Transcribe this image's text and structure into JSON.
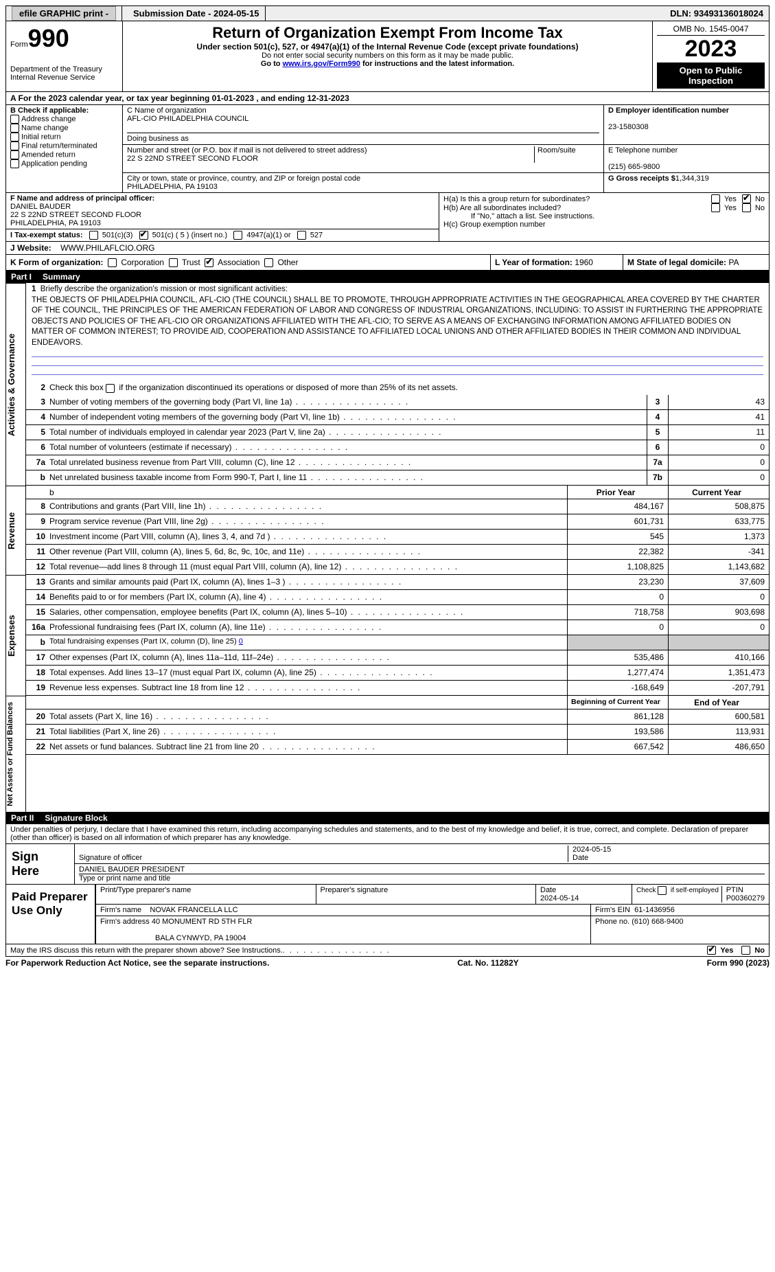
{
  "topbar": {
    "efile": "efile GRAPHIC print -",
    "submission": "Submission Date - 2024-05-15",
    "dln_label": "DLN:",
    "dln": "93493136018024"
  },
  "header": {
    "form": "Form",
    "form_num": "990",
    "title": "Return of Organization Exempt From Income Tax",
    "subtitle": "Under section 501(c), 527, or 4947(a)(1) of the Internal Revenue Code (except private foundations)",
    "note1": "Do not enter social security numbers on this form as it may be made public.",
    "note2_pre": "Go to ",
    "note2_link": "www.irs.gov/Form990",
    "note2_post": " for instructions and the latest information.",
    "dept": "Department of the Treasury\nInternal Revenue Service",
    "omb": "OMB No. 1545-0047",
    "year": "2023",
    "inspect": "Open to Public Inspection"
  },
  "row_a": "A  For the 2023 calendar year, or tax year beginning 01-01-2023     , and ending 12-31-2023",
  "box_b": {
    "label": "B Check if applicable:",
    "opts": [
      "Address change",
      "Name change",
      "Initial return",
      "Final return/terminated",
      "Amended return",
      "Application pending"
    ]
  },
  "box_c": {
    "name_lbl": "C Name of organization",
    "name": "AFL-CIO PHILADELPHIA COUNCIL",
    "dba_lbl": "Doing business as",
    "dba": "",
    "addr_lbl": "Number and street (or P.O. box if mail is not delivered to street address)",
    "room_lbl": "Room/suite",
    "addr": "22 S 22ND STREET SECOND FLOOR",
    "city_lbl": "City or town, state or province, country, and ZIP or foreign postal code",
    "city": "PHILADELPHIA, PA  19103"
  },
  "box_d": {
    "lbl": "D Employer identification number",
    "val": "23-1580308"
  },
  "box_e": {
    "lbl": "E Telephone number",
    "val": "(215) 665-9800"
  },
  "box_g": {
    "lbl": "G Gross receipts $",
    "val": "1,344,319"
  },
  "box_f": {
    "lbl": "F Name and address of principal officer:",
    "name": "DANIEL BAUDER",
    "addr1": "22 S 22ND STREET SECOND FLOOR",
    "addr2": "PHILADELPHIA, PA  19103"
  },
  "box_h": {
    "ha": "H(a)  Is this a group return for subordinates?",
    "hb": "H(b)  Are all subordinates included?",
    "hb_note": "If \"No,\" attach a list. See instructions.",
    "hc": "H(c)  Group exemption number",
    "yes": "Yes",
    "no": "No"
  },
  "box_i": {
    "lbl": "I    Tax-exempt status:",
    "c3": "501(c)(3)",
    "c": "501(c) ( 5 ) (insert no.)",
    "a1": "4947(a)(1) or",
    "five27": "527"
  },
  "box_j": {
    "lbl": "J    Website:",
    "val": "WWW.PHILAFLCIO.ORG"
  },
  "box_k": {
    "lbl": "K Form of organization:",
    "corp": "Corporation",
    "trust": "Trust",
    "assoc": "Association",
    "other": "Other"
  },
  "box_l": {
    "lbl": "L Year of formation:",
    "val": "1960"
  },
  "box_m": {
    "lbl": "M State of legal domicile:",
    "val": "PA"
  },
  "part1": {
    "num": "Part I",
    "title": "Summary"
  },
  "gov": {
    "label": "Activities & Governance",
    "l1": "Briefly describe the organization's mission or most significant activities:",
    "mission": "THE OBJECTS OF PHILADELPHIA COUNCIL, AFL-CIO (THE COUNCIL) SHALL BE TO PROMOTE, THROUGH APPROPRIATE ACTIVITIES IN THE GEOGRAPHICAL AREA COVERED BY THE CHARTER OF THE COUNCIL, THE PRINCIPLES OF THE AMERICAN FEDERATION OF LABOR AND CONGRESS OF INDUSTRIAL ORGANIZATIONS, INCLUDING: TO ASSIST IN FURTHERING THE APPROPRIATE OBJECTS AND POLICIES OF THE AFL-CIO OR ORGANIZATIONS AFFILIATED WITH THE AFL-CIO; TO SERVE AS A MEANS OF EXCHANGING INFORMATION AMONG AFFILIATED BODIES ON MATTER OF COMMON INTEREST; TO PROVIDE AID, COOPERATION AND ASSISTANCE TO AFFILIATED LOCAL UNIONS AND OTHER AFFILIATED BODIES IN THEIR COMMON AND INDIVIDUAL ENDEAVORS.",
    "l2": "Check this box      if the organization discontinued its operations or disposed of more than 25% of its net assets.",
    "lines": [
      {
        "n": "3",
        "d": "Number of voting members of the governing body (Part VI, line 1a)",
        "b": "3",
        "v": "43"
      },
      {
        "n": "4",
        "d": "Number of independent voting members of the governing body (Part VI, line 1b)",
        "b": "4",
        "v": "41"
      },
      {
        "n": "5",
        "d": "Total number of individuals employed in calendar year 2023 (Part V, line 2a)",
        "b": "5",
        "v": "11"
      },
      {
        "n": "6",
        "d": "Total number of volunteers (estimate if necessary)",
        "b": "6",
        "v": "0"
      },
      {
        "n": "7a",
        "d": "Total unrelated business revenue from Part VIII, column (C), line 12",
        "b": "7a",
        "v": "0"
      },
      {
        "n": "b",
        "d": "Net unrelated business taxable income from Form 990-T, Part I, line 11",
        "b": "7b",
        "v": "0"
      }
    ]
  },
  "rev": {
    "label": "Revenue",
    "hdr_prior": "Prior Year",
    "hdr_curr": "Current Year",
    "lines": [
      {
        "n": "8",
        "d": "Contributions and grants (Part VIII, line 1h)",
        "p": "484,167",
        "c": "508,875"
      },
      {
        "n": "9",
        "d": "Program service revenue (Part VIII, line 2g)",
        "p": "601,731",
        "c": "633,775"
      },
      {
        "n": "10",
        "d": "Investment income (Part VIII, column (A), lines 3, 4, and 7d )",
        "p": "545",
        "c": "1,373"
      },
      {
        "n": "11",
        "d": "Other revenue (Part VIII, column (A), lines 5, 6d, 8c, 9c, 10c, and 11e)",
        "p": "22,382",
        "c": "-341"
      },
      {
        "n": "12",
        "d": "Total revenue—add lines 8 through 11 (must equal Part VIII, column (A), line 12)",
        "p": "1,108,825",
        "c": "1,143,682"
      }
    ]
  },
  "exp": {
    "label": "Expenses",
    "lines": [
      {
        "n": "13",
        "d": "Grants and similar amounts paid (Part IX, column (A), lines 1–3 )",
        "p": "23,230",
        "c": "37,609"
      },
      {
        "n": "14",
        "d": "Benefits paid to or for members (Part IX, column (A), line 4)",
        "p": "0",
        "c": "0"
      },
      {
        "n": "15",
        "d": "Salaries, other compensation, employee benefits (Part IX, column (A), lines 5–10)",
        "p": "718,758",
        "c": "903,698"
      },
      {
        "n": "16a",
        "d": "Professional fundraising fees (Part IX, column (A), line 11e)",
        "p": "0",
        "c": "0"
      }
    ],
    "l16b_pre": "Total fundraising expenses (Part IX, column (D), line 25)",
    "l16b_val": "0",
    "lines2": [
      {
        "n": "17",
        "d": "Other expenses (Part IX, column (A), lines 11a–11d, 11f–24e)",
        "p": "535,486",
        "c": "410,166"
      },
      {
        "n": "18",
        "d": "Total expenses. Add lines 13–17 (must equal Part IX, column (A), line 25)",
        "p": "1,277,474",
        "c": "1,351,473"
      },
      {
        "n": "19",
        "d": "Revenue less expenses. Subtract line 18 from line 12",
        "p": "-168,649",
        "c": "-207,791"
      }
    ]
  },
  "net": {
    "label": "Net Assets or Fund Balances",
    "hdr_beg": "Beginning of Current Year",
    "hdr_end": "End of Year",
    "lines": [
      {
        "n": "20",
        "d": "Total assets (Part X, line 16)",
        "p": "861,128",
        "c": "600,581"
      },
      {
        "n": "21",
        "d": "Total liabilities (Part X, line 26)",
        "p": "193,586",
        "c": "113,931"
      },
      {
        "n": "22",
        "d": "Net assets or fund balances. Subtract line 21 from line 20",
        "p": "667,542",
        "c": "486,650"
      }
    ]
  },
  "part2": {
    "num": "Part II",
    "title": "Signature Block"
  },
  "sig": {
    "penalty": "Under penalties of perjury, I declare that I have examined this return, including accompanying schedules and statements, and to the best of my knowledge and belief, it is true, correct, and complete. Declaration of preparer (other than officer) is based on all information of which preparer has any knowledge.",
    "sign_here": "Sign Here",
    "sig_lbl": "Signature of officer",
    "date_lbl": "Date",
    "date": "2024-05-15",
    "name": "DANIEL BAUDER  PRESIDENT",
    "type_lbl": "Type or print name and title"
  },
  "prep": {
    "label": "Paid Preparer Use Only",
    "print_lbl": "Print/Type preparer's name",
    "prep_sig_lbl": "Preparer's signature",
    "date_lbl": "Date",
    "date": "2024-05-14",
    "check_lbl": "Check         if self-employed",
    "ptin_lbl": "PTIN",
    "ptin": "P00360279",
    "firm_name_lbl": "Firm's name",
    "firm_name": "NOVAK FRANCELLA LLC",
    "firm_ein_lbl": "Firm's EIN",
    "firm_ein": "61-1436956",
    "firm_addr_lbl": "Firm's address",
    "firm_addr1": "40 MONUMENT RD 5TH FLR",
    "firm_addr2": "BALA CYNWYD, PA  19004",
    "phone_lbl": "Phone no.",
    "phone": "(610) 668-9400"
  },
  "footer": {
    "discuss": "May the IRS discuss this return with the preparer shown above? See Instructions.",
    "yes": "Yes",
    "no": "No",
    "paperwork": "For Paperwork Reduction Act Notice, see the separate instructions.",
    "cat": "Cat. No. 11282Y",
    "form": "Form 990 (2023)"
  }
}
